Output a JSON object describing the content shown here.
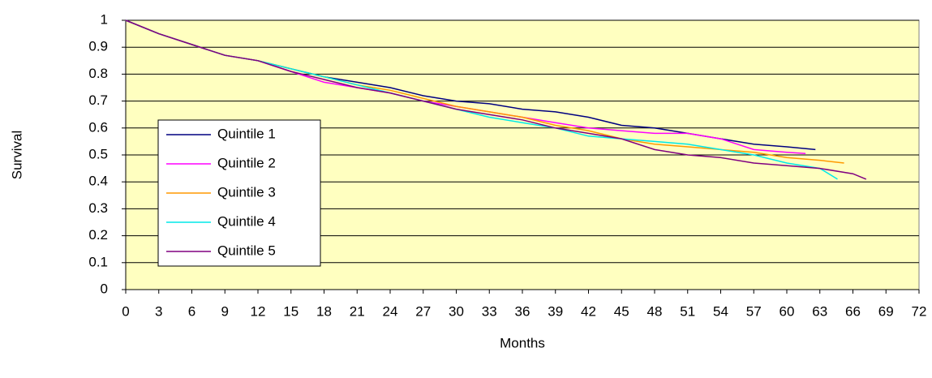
{
  "chart_data": {
    "type": "line",
    "x_label": "Months",
    "y_label": "Survival",
    "xlim": [
      0,
      72
    ],
    "xticks": [
      0,
      3,
      6,
      9,
      12,
      15,
      18,
      21,
      24,
      27,
      30,
      33,
      36,
      39,
      42,
      45,
      48,
      51,
      54,
      57,
      60,
      63,
      66,
      69,
      72
    ],
    "ylim": [
      0,
      1
    ],
    "yticks": [
      0,
      0.1,
      0.2,
      0.3,
      0.4,
      0.5,
      0.6,
      0.7,
      0.8,
      0.9,
      1
    ],
    "grid": true,
    "background": "#ffffc0",
    "legend": "left",
    "series": [
      {
        "name": "Quintile 1",
        "color": "#000080",
        "x": [
          0,
          3,
          6,
          9,
          12,
          15,
          18,
          21,
          24,
          27,
          30,
          33,
          36,
          39,
          42,
          45,
          48,
          51,
          54,
          57,
          60,
          62.6
        ],
        "values": [
          1,
          0.95,
          0.91,
          0.87,
          0.85,
          0.82,
          0.79,
          0.77,
          0.75,
          0.72,
          0.7,
          0.69,
          0.67,
          0.66,
          0.64,
          0.61,
          0.6,
          0.58,
          0.56,
          0.54,
          0.53,
          0.52
        ]
      },
      {
        "name": "Quintile 2",
        "color": "#ff00ff",
        "x": [
          0,
          3,
          6,
          9,
          12,
          15,
          18,
          21,
          24,
          27,
          30,
          33,
          36,
          39,
          42,
          45,
          48,
          51,
          54,
          57,
          60,
          61.7
        ],
        "values": [
          1,
          0.95,
          0.91,
          0.87,
          0.85,
          0.81,
          0.77,
          0.75,
          0.73,
          0.7,
          0.68,
          0.66,
          0.64,
          0.62,
          0.6,
          0.59,
          0.58,
          0.58,
          0.56,
          0.52,
          0.51,
          0.505
        ]
      },
      {
        "name": "Quintile 3",
        "color": "#ff9900",
        "x": [
          0,
          3,
          6,
          9,
          12,
          15,
          18,
          21,
          24,
          27,
          30,
          33,
          36,
          39,
          42,
          45,
          48,
          51,
          54,
          57,
          60,
          63,
          65.2
        ],
        "values": [
          1,
          0.95,
          0.91,
          0.87,
          0.85,
          0.82,
          0.79,
          0.76,
          0.74,
          0.71,
          0.68,
          0.66,
          0.64,
          0.61,
          0.59,
          0.56,
          0.54,
          0.53,
          0.52,
          0.51,
          0.49,
          0.48,
          0.47
        ]
      },
      {
        "name": "Quintile 4",
        "color": "#00e8e8",
        "x": [
          0,
          3,
          6,
          9,
          12,
          15,
          18,
          21,
          24,
          27,
          30,
          33,
          36,
          39,
          42,
          45,
          48,
          51,
          54,
          57,
          60,
          63,
          64.6
        ],
        "values": [
          1,
          0.95,
          0.91,
          0.87,
          0.85,
          0.82,
          0.79,
          0.76,
          0.73,
          0.7,
          0.67,
          0.64,
          0.62,
          0.6,
          0.57,
          0.56,
          0.55,
          0.54,
          0.52,
          0.5,
          0.47,
          0.45,
          0.41
        ]
      },
      {
        "name": "Quintile 5",
        "color": "#800080",
        "x": [
          0,
          3,
          6,
          9,
          12,
          15,
          18,
          21,
          24,
          27,
          30,
          33,
          36,
          39,
          42,
          45,
          48,
          51,
          54,
          57,
          60,
          63,
          66,
          67.2
        ],
        "values": [
          1,
          0.95,
          0.91,
          0.87,
          0.85,
          0.81,
          0.78,
          0.75,
          0.73,
          0.7,
          0.67,
          0.65,
          0.63,
          0.6,
          0.58,
          0.56,
          0.52,
          0.5,
          0.49,
          0.47,
          0.46,
          0.45,
          0.43,
          0.41
        ]
      }
    ]
  }
}
